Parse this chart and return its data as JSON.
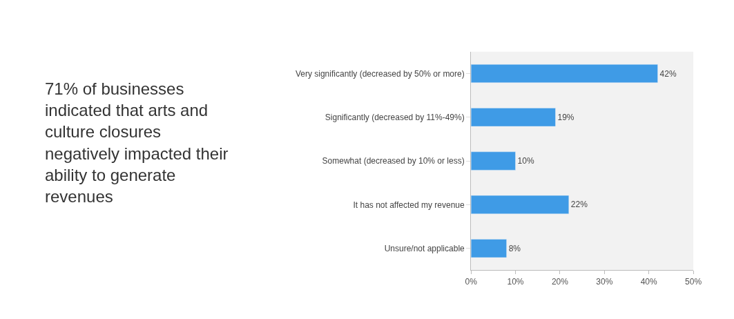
{
  "chart_data": {
    "type": "bar",
    "orientation": "horizontal",
    "categories": [
      "Very significantly (decreased by 50% or more)",
      "Significantly (decreased by 11%-49%)",
      "Somewhat (decreased by 10% or less)",
      "It has not affected my revenue",
      "Unsure/not applicable"
    ],
    "values": [
      42,
      19,
      10,
      22,
      8
    ],
    "value_labels": [
      "42%",
      "19%",
      "10%",
      "22%",
      "8%"
    ],
    "color": "#3f9be6",
    "xlim": [
      0,
      50
    ],
    "xticks": [
      {
        "value": 0,
        "label": "0%"
      },
      {
        "value": 10,
        "label": "10%"
      },
      {
        "value": 20,
        "label": "20%"
      },
      {
        "value": 30,
        "label": "30%"
      },
      {
        "value": 40,
        "label": "40%"
      },
      {
        "value": 50,
        "label": "50%"
      }
    ],
    "grid": false,
    "annotations": [
      "71% of businesses indicated that arts and culture closures negatively impacted their ability to generate revenues"
    ]
  }
}
